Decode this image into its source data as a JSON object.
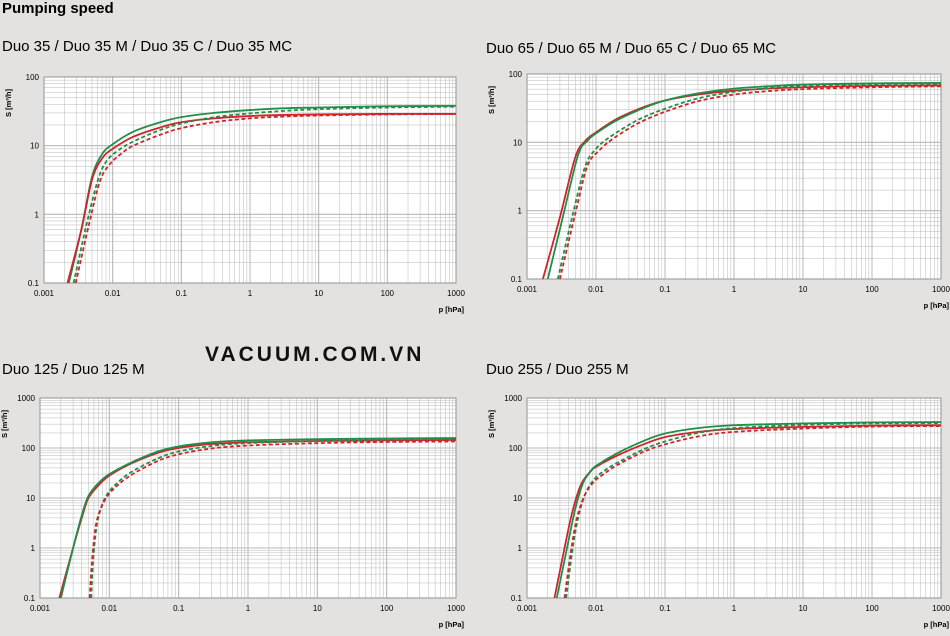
{
  "page_title": "Pumping speed",
  "watermark": "VACUUM.COM.VN",
  "colors": {
    "red": "#d2232a",
    "green": "#1f8f4a",
    "grid": "#b8b8b8",
    "plot_bg": "#ffffff",
    "page_bg": "#e3e2e1"
  },
  "chart_data": [
    {
      "type": "line",
      "title": "Duo 35 / Duo 35 M / Duo 35 C / Duo 35 MC",
      "xlabel": "p [hPa]",
      "ylabel": "S [m³/h]",
      "xscale": "log",
      "yscale": "log",
      "xlim": [
        0.001,
        1000
      ],
      "ylim": [
        0.1,
        100
      ],
      "xticks": [
        "0.001",
        "0.01",
        "0.1",
        "1",
        "10",
        "100",
        "1000"
      ],
      "yticks": [
        "0.1",
        "1",
        "10",
        "100"
      ],
      "series": [
        {
          "name": "green solid",
          "color": "green",
          "dash": false,
          "x": [
            0.0023,
            0.0035,
            0.005,
            0.007,
            0.01,
            0.02,
            0.05,
            0.1,
            0.3,
            1,
            3,
            10,
            100,
            1000
          ],
          "y": [
            0.1,
            0.6,
            3.5,
            7.5,
            10.5,
            16,
            22,
            26,
            30,
            33,
            35,
            36,
            37.5,
            38
          ]
        },
        {
          "name": "red solid",
          "color": "red",
          "dash": false,
          "x": [
            0.0022,
            0.0035,
            0.005,
            0.007,
            0.01,
            0.02,
            0.05,
            0.1,
            0.3,
            1,
            3,
            10,
            100,
            1000
          ],
          "y": [
            0.1,
            0.6,
            3.2,
            6.5,
            9,
            13.5,
            18.5,
            22,
            25,
            27,
            28,
            28.5,
            29,
            29
          ]
        },
        {
          "name": "green dashed",
          "color": "green",
          "dash": true,
          "x": [
            0.0027,
            0.004,
            0.006,
            0.008,
            0.012,
            0.02,
            0.05,
            0.1,
            0.3,
            1,
            3,
            10,
            100,
            1000
          ],
          "y": [
            0.1,
            0.6,
            3,
            5.8,
            8.5,
            11.5,
            17,
            21,
            26,
            29.5,
            32,
            34,
            36,
            37
          ]
        },
        {
          "name": "red dashed",
          "color": "red",
          "dash": true,
          "x": [
            0.0029,
            0.0045,
            0.0065,
            0.009,
            0.013,
            0.02,
            0.05,
            0.1,
            0.3,
            1,
            3,
            10,
            100,
            1000
          ],
          "y": [
            0.1,
            0.7,
            3,
            5.3,
            7.5,
            10,
            14.5,
            18,
            22,
            25,
            26.5,
            27.5,
            28.5,
            29
          ]
        }
      ]
    },
    {
      "type": "line",
      "title": "Duo 65 / Duo 65 M / Duo 65 C / Duo 65 MC",
      "xlabel": "p [hPa]",
      "ylabel": "S [m³/h]",
      "xscale": "log",
      "yscale": "log",
      "xlim": [
        0.001,
        1000
      ],
      "ylim": [
        0.1,
        100
      ],
      "xticks": [
        "0.001",
        "0.01",
        "0.1",
        "1",
        "10",
        "100",
        "1000"
      ],
      "yticks": [
        "0.1",
        "1",
        "10",
        "100"
      ],
      "series": [
        {
          "name": "red solid",
          "color": "red",
          "dash": false,
          "x": [
            0.0017,
            0.003,
            0.005,
            0.007,
            0.01,
            0.02,
            0.05,
            0.1,
            0.3,
            1,
            3,
            10,
            100,
            1000
          ],
          "y": [
            0.1,
            0.8,
            6,
            10.5,
            14,
            22,
            33,
            41,
            50,
            57,
            61,
            64,
            67,
            68
          ]
        },
        {
          "name": "green solid",
          "color": "green",
          "dash": false,
          "x": [
            0.002,
            0.0033,
            0.0055,
            0.0075,
            0.01,
            0.02,
            0.05,
            0.1,
            0.3,
            1,
            3,
            10,
            100,
            1000
          ],
          "y": [
            0.1,
            0.8,
            6.5,
            10.5,
            13.5,
            21,
            32,
            41,
            52,
            61,
            66,
            70,
            73,
            74
          ]
        },
        {
          "name": "green dashed",
          "color": "green",
          "dash": true,
          "x": [
            0.0028,
            0.0045,
            0.007,
            0.01,
            0.015,
            0.03,
            0.05,
            0.1,
            0.3,
            1,
            3,
            10,
            100,
            1000
          ],
          "y": [
            0.1,
            0.8,
            4.5,
            8,
            11.5,
            18,
            23.5,
            31,
            44,
            55,
            62,
            67,
            71,
            72
          ]
        },
        {
          "name": "red dashed",
          "color": "red",
          "dash": true,
          "x": [
            0.003,
            0.005,
            0.0075,
            0.011,
            0.016,
            0.03,
            0.05,
            0.1,
            0.3,
            1,
            3,
            10,
            100,
            1000
          ],
          "y": [
            0.1,
            0.9,
            4.5,
            7.5,
            10.5,
            16,
            21,
            28,
            40,
            50,
            56,
            60,
            64,
            66
          ]
        }
      ]
    },
    {
      "type": "line",
      "title": "Duo 125 / Duo 125 M",
      "xlabel": "p [hPa]",
      "ylabel": "S [m³/h]",
      "xscale": "log",
      "yscale": "log",
      "xlim": [
        0.001,
        1000
      ],
      "ylim": [
        0.1,
        1000
      ],
      "xticks": [
        "0.001",
        "0.01",
        "0.1",
        "1",
        "10",
        "100",
        "1000"
      ],
      "yticks": [
        "0.1",
        "1",
        "10",
        "100",
        "1000"
      ],
      "series": [
        {
          "name": "red solid",
          "color": "red",
          "dash": false,
          "x": [
            0.0019,
            0.003,
            0.004,
            0.005,
            0.007,
            0.01,
            0.02,
            0.05,
            0.1,
            0.3,
            1,
            10,
            100,
            1000
          ],
          "y": [
            0.1,
            1,
            4,
            10,
            18,
            28,
            48,
            80,
            100,
            120,
            130,
            138,
            142,
            145
          ]
        },
        {
          "name": "green solid",
          "color": "green",
          "dash": false,
          "x": [
            0.002,
            0.003,
            0.004,
            0.005,
            0.007,
            0.01,
            0.02,
            0.05,
            0.1,
            0.3,
            1,
            10,
            100,
            1000
          ],
          "y": [
            0.1,
            1,
            4.5,
            11,
            20,
            30,
            50,
            85,
            108,
            130,
            142,
            150,
            155,
            158
          ]
        },
        {
          "name": "green dashed",
          "color": "green",
          "dash": true,
          "x": [
            0.0055,
            0.0058,
            0.0065,
            0.0075,
            0.009,
            0.012,
            0.02,
            0.05,
            0.1,
            0.3,
            1,
            10,
            100,
            1000
          ],
          "y": [
            0.1,
            0.5,
            2.5,
            6,
            11,
            18,
            32,
            62,
            85,
            110,
            125,
            138,
            148,
            152
          ]
        },
        {
          "name": "red dashed",
          "color": "red",
          "dash": true,
          "x": [
            0.0052,
            0.0056,
            0.0063,
            0.0073,
            0.009,
            0.012,
            0.02,
            0.05,
            0.1,
            0.3,
            1,
            10,
            100,
            1000
          ],
          "y": [
            0.1,
            0.5,
            2.5,
            5.5,
            10,
            16,
            28,
            55,
            75,
            98,
            112,
            125,
            132,
            135
          ]
        }
      ]
    },
    {
      "type": "line",
      "title": "Duo 255 / Duo 255 M",
      "xlabel": "p [hPa]",
      "ylabel": "S [m³/h]",
      "xscale": "log",
      "yscale": "log",
      "xlim": [
        0.001,
        1000
      ],
      "ylim": [
        0.1,
        1000
      ],
      "xticks": [
        "0.001",
        "0.01",
        "0.1",
        "1",
        "10",
        "100",
        "1000"
      ],
      "yticks": [
        "0.1",
        "1",
        "10",
        "100",
        "1000"
      ],
      "series": [
        {
          "name": "red solid",
          "color": "red",
          "dash": false,
          "x": [
            0.0025,
            0.0035,
            0.0045,
            0.006,
            0.008,
            0.01,
            0.02,
            0.05,
            0.1,
            0.3,
            1,
            10,
            100,
            1000
          ],
          "y": [
            0.1,
            1,
            5,
            18,
            32,
            42,
            70,
            120,
            165,
            210,
            240,
            265,
            280,
            285
          ]
        },
        {
          "name": "green solid",
          "color": "green",
          "dash": false,
          "x": [
            0.0027,
            0.0038,
            0.005,
            0.0065,
            0.0085,
            0.01,
            0.02,
            0.05,
            0.1,
            0.3,
            1,
            10,
            100,
            1000
          ],
          "y": [
            0.1,
            1,
            6,
            20,
            35,
            44,
            78,
            140,
            195,
            250,
            285,
            310,
            325,
            330
          ]
        },
        {
          "name": "green dashed",
          "color": "green",
          "dash": true,
          "x": [
            0.0037,
            0.0045,
            0.0055,
            0.007,
            0.009,
            0.012,
            0.02,
            0.05,
            0.1,
            0.3,
            1,
            10,
            100,
            1000
          ],
          "y": [
            0.1,
            0.8,
            4,
            12,
            22,
            32,
            50,
            95,
            135,
            200,
            250,
            290,
            310,
            315
          ]
        },
        {
          "name": "red dashed",
          "color": "red",
          "dash": true,
          "x": [
            0.0035,
            0.0043,
            0.0053,
            0.0068,
            0.009,
            0.012,
            0.02,
            0.05,
            0.1,
            0.3,
            1,
            10,
            100,
            1000
          ],
          "y": [
            0.1,
            0.8,
            4,
            11,
            20,
            28,
            45,
            85,
            118,
            170,
            210,
            245,
            268,
            275
          ]
        }
      ]
    }
  ]
}
